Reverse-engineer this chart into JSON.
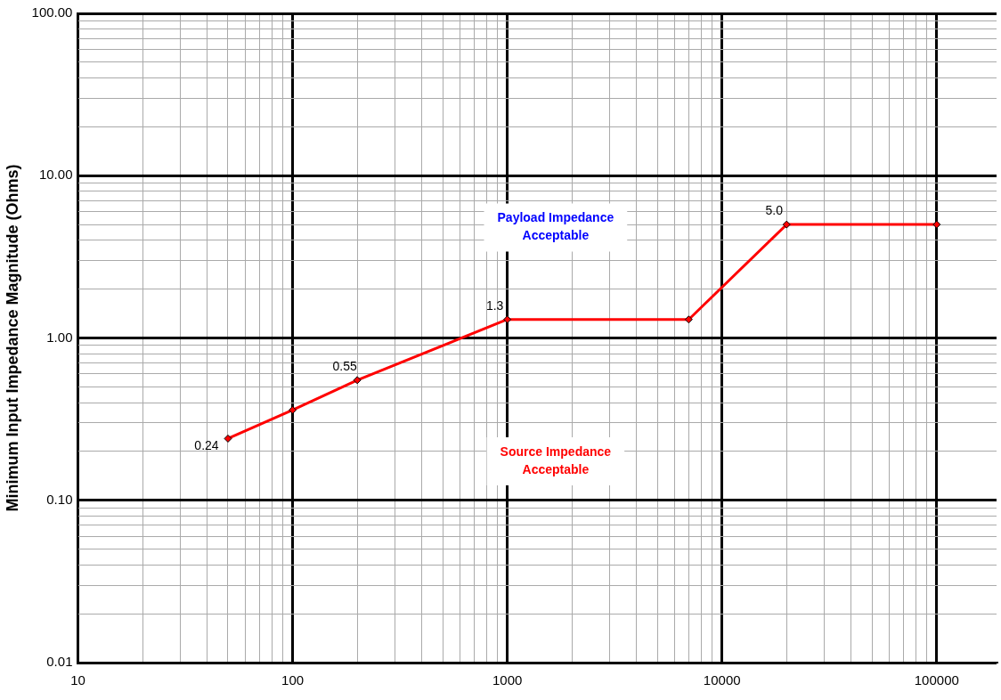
{
  "chart_data": {
    "type": "line",
    "ylabel": "Minimum Input Impedance Magnitude (Ohms)",
    "x": [
      50,
      100,
      200,
      1000,
      7000,
      20000,
      100000
    ],
    "series": [
      {
        "color": "#ff0000",
        "values": [
          0.24,
          0.36,
          0.55,
          1.3,
          1.3,
          5.0,
          5.0
        ],
        "value_labels": [
          "0.24",
          null,
          "0.55",
          "1.3",
          null,
          "5.0",
          null
        ]
      }
    ],
    "log": "xy",
    "xlim": [
      10,
      190000
    ],
    "ylim": [
      0.01,
      100
    ],
    "xticks": [
      10,
      {
        "value": 20,
        "label": null
      },
      {
        "value": 30,
        "label": null
      },
      {
        "value": 40,
        "label": null
      },
      {
        "value": 50,
        "label": null
      },
      {
        "value": 60,
        "label": null
      },
      {
        "value": 70,
        "label": null
      },
      {
        "value": 80,
        "label": null
      },
      {
        "value": 90,
        "label": null
      },
      100,
      {
        "value": 200,
        "label": null
      },
      {
        "value": 300,
        "label": null
      },
      {
        "value": 400,
        "label": null
      },
      {
        "value": 500,
        "label": null
      },
      {
        "value": 600,
        "label": null
      },
      {
        "value": 700,
        "label": null
      },
      {
        "value": 800,
        "label": null
      },
      {
        "value": 900,
        "label": null
      },
      1000,
      {
        "value": 2000,
        "label": null
      },
      {
        "value": 3000,
        "label": null
      },
      {
        "value": 4000,
        "label": null
      },
      {
        "value": 5000,
        "label": null
      },
      {
        "value": 6000,
        "label": null
      },
      {
        "value": 7000,
        "label": null
      },
      {
        "value": 8000,
        "label": null
      },
      {
        "value": 9000,
        "label": null
      },
      10000,
      {
        "value": 20000,
        "label": null
      },
      {
        "value": 30000,
        "label": null
      },
      {
        "value": 40000,
        "label": null
      },
      {
        "value": 50000,
        "label": null
      },
      {
        "value": 60000,
        "label": null
      },
      {
        "value": 70000,
        "label": null
      },
      {
        "value": 80000,
        "label": null
      },
      {
        "value": 90000,
        "label": null
      },
      100000
    ],
    "yticks": [
      {
        "value": 0.01,
        "label": "0.01"
      },
      {
        "value": 0.02,
        "label": null
      },
      {
        "value": 0.03,
        "label": null
      },
      {
        "value": 0.04,
        "label": null
      },
      {
        "value": 0.05,
        "label": null
      },
      {
        "value": 0.06,
        "label": null
      },
      {
        "value": 0.07,
        "label": null
      },
      {
        "value": 0.08,
        "label": null
      },
      {
        "value": 0.09,
        "label": null
      },
      {
        "value": 0.1,
        "label": "0.10"
      },
      {
        "value": 0.2,
        "label": null
      },
      {
        "value": 0.3,
        "label": null
      },
      {
        "value": 0.4,
        "label": null
      },
      {
        "value": 0.5,
        "label": null
      },
      {
        "value": 0.6,
        "label": null
      },
      {
        "value": 0.7,
        "label": null
      },
      {
        "value": 0.8,
        "label": null
      },
      {
        "value": 0.9,
        "label": null
      },
      {
        "value": 1,
        "label": "1.00"
      },
      {
        "value": 2,
        "label": null
      },
      {
        "value": 3,
        "label": null
      },
      {
        "value": 4,
        "label": null
      },
      {
        "value": 5,
        "label": null
      },
      {
        "value": 6,
        "label": null
      },
      {
        "value": 7,
        "label": null
      },
      {
        "value": 8,
        "label": null
      },
      {
        "value": 9,
        "label": null
      },
      {
        "value": 10,
        "label": "10.00"
      },
      {
        "value": 20,
        "label": null
      },
      {
        "value": 30,
        "label": null
      },
      {
        "value": 40,
        "label": null
      },
      {
        "value": 50,
        "label": null
      },
      {
        "value": 60,
        "label": null
      },
      {
        "value": 70,
        "label": null
      },
      {
        "value": 80,
        "label": null
      },
      {
        "value": 90,
        "label": null
      },
      {
        "value": 100,
        "label": "100.00"
      }
    ],
    "grid": true,
    "marker": "diamond",
    "line_style": "solid",
    "legend": false,
    "annotations": [
      "Payload Impedance\nAcceptable",
      "Source Impedance\nAcceptable"
    ]
  }
}
